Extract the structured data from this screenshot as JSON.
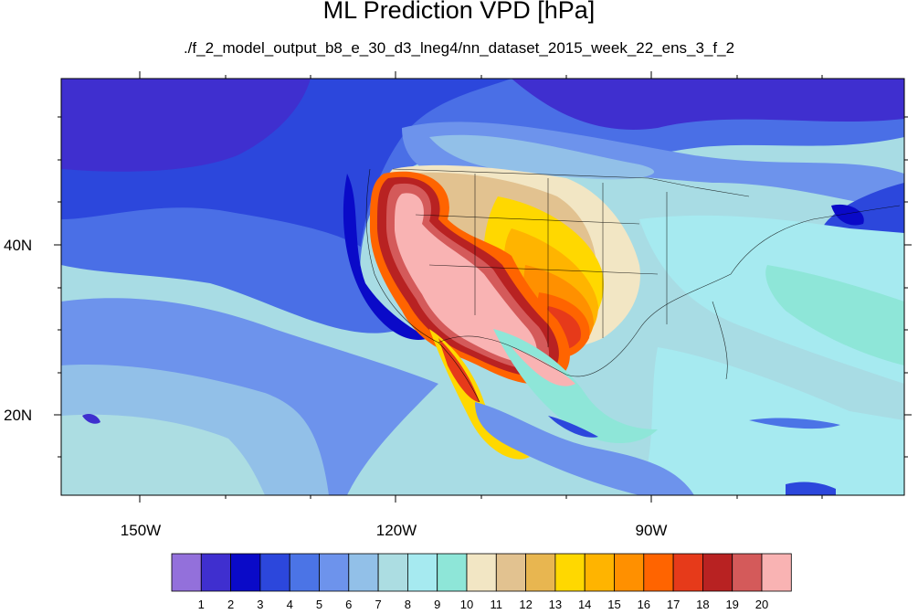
{
  "title": "ML Prediction VPD [hPa]",
  "subtitle": "./f_2_model_output_b8_e_30_d3_lneg4/nn_dataset_2015_week_22_ens_3_f_2",
  "latitude_labels": [
    "40N",
    "20N"
  ],
  "longitude_labels": [
    "150W",
    "120W",
    "90W"
  ],
  "colorbar": {
    "labels": [
      "1",
      "2",
      "3",
      "4",
      "5",
      "6",
      "7",
      "8",
      "9",
      "10",
      "11",
      "12",
      "13",
      "14",
      "15",
      "16",
      "17",
      "18",
      "19",
      "20"
    ],
    "colors": [
      "#9370db",
      "#3f2fcf",
      "#0a0ac8",
      "#2c47dc",
      "#4b74e6",
      "#6d93ec",
      "#92c0e8",
      "#acdde2",
      "#a6eaf0",
      "#8ee6d8",
      "#f2e6c4",
      "#e2c290",
      "#e8b650",
      "#ffd800",
      "#ffb400",
      "#ff9000",
      "#ff6400",
      "#e63a1a",
      "#b82222",
      "#d45a5a",
      "#f9b3b3"
    ]
  }
}
